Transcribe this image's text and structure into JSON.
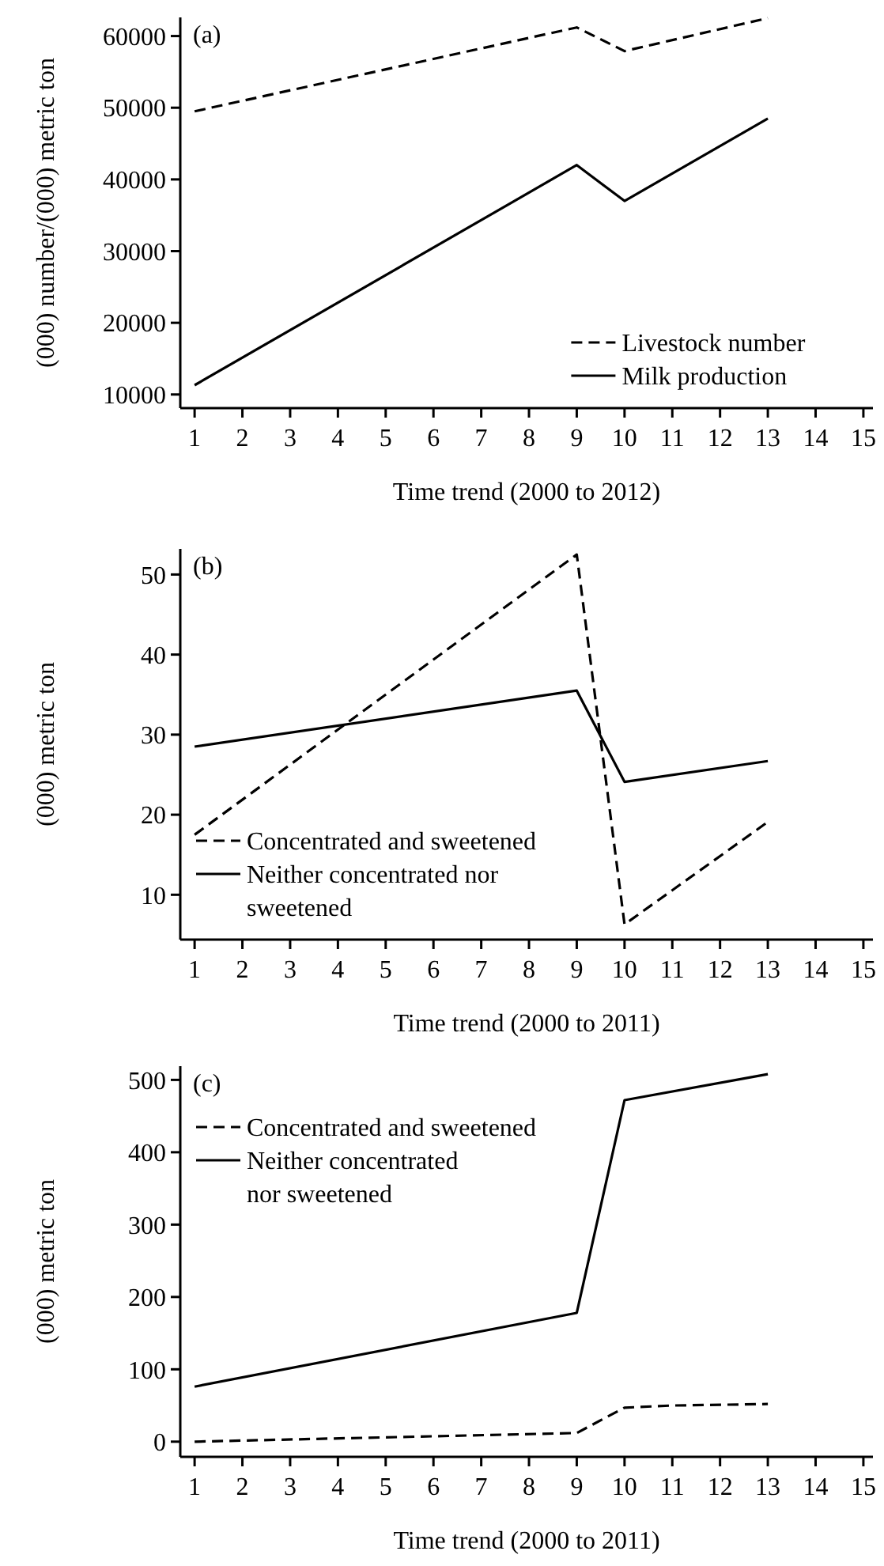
{
  "chart_data": [
    {
      "type": "line",
      "title": "(a)",
      "xlabel": "Time trend (2000 to 2012)",
      "ylabel": "(000) number/(000) metric ton",
      "xlim": [
        0.7,
        15.2
      ],
      "xticks": [
        1,
        2,
        3,
        4,
        5,
        6,
        7,
        8,
        9,
        10,
        11,
        12,
        13,
        14,
        15
      ],
      "ylim": [
        8100,
        62600
      ],
      "yticks": [
        10000,
        20000,
        30000,
        40000,
        50000,
        60000
      ],
      "legend": "bottom right",
      "grid": false,
      "series": [
        {
          "name": "Livestock number",
          "color": "#000000",
          "line_style": "dashed",
          "x": [
            1,
            9,
            10,
            13
          ],
          "values": [
            49500,
            61200,
            57900,
            62500
          ]
        },
        {
          "name": "Milk production",
          "color": "#000000",
          "line_style": "solid",
          "x": [
            1,
            9,
            10,
            13
          ],
          "values": [
            11300,
            42000,
            37000,
            48500
          ]
        }
      ]
    },
    {
      "type": "line",
      "title": "(b)",
      "xlabel": "Time trend (2000 to 2011)",
      "ylabel": "(000) metric ton",
      "xlim": [
        0.7,
        15.2
      ],
      "xticks": [
        1,
        2,
        3,
        4,
        5,
        6,
        7,
        8,
        9,
        10,
        11,
        12,
        13,
        14,
        15
      ],
      "ylim": [
        4.4,
        53.2
      ],
      "yticks": [
        10,
        20,
        30,
        40,
        50
      ],
      "legend": "bottom left",
      "grid": false,
      "series": [
        {
          "name": "Concentrated and sweetened",
          "color": "#000000",
          "line_style": "dashed",
          "x": [
            1,
            9,
            10,
            13
          ],
          "values": [
            17.5,
            52.5,
            6.3,
            19.1
          ]
        },
        {
          "name": "Neither concentrated nor sweetened",
          "color": "#000000",
          "line_style": "solid",
          "x": [
            1,
            9,
            10,
            13
          ],
          "values": [
            28.5,
            35.5,
            24.1,
            26.7
          ]
        }
      ]
    },
    {
      "type": "line",
      "title": "(c)",
      "xlabel": "Time trend (2000 to 2011)",
      "ylabel": "(000) metric ton",
      "xlim": [
        0.7,
        15.2
      ],
      "xticks": [
        1,
        2,
        3,
        4,
        5,
        6,
        7,
        8,
        9,
        10,
        11,
        12,
        13,
        14,
        15
      ],
      "ylim": [
        -21,
        519
      ],
      "yticks": [
        0,
        100,
        200,
        300,
        400,
        500
      ],
      "legend": "top left",
      "grid": false,
      "series": [
        {
          "name": "Concentrated and sweetened",
          "color": "#000000",
          "line_style": "dashed",
          "x": [
            1,
            9,
            10,
            11,
            13
          ],
          "values": [
            0,
            12,
            47,
            50,
            52
          ]
        },
        {
          "name": "Neither concentrated nor sweetened",
          "color": "#000000",
          "line_style": "solid",
          "x": [
            1,
            9,
            10,
            13
          ],
          "values": [
            76,
            178,
            472,
            508
          ]
        }
      ]
    }
  ]
}
